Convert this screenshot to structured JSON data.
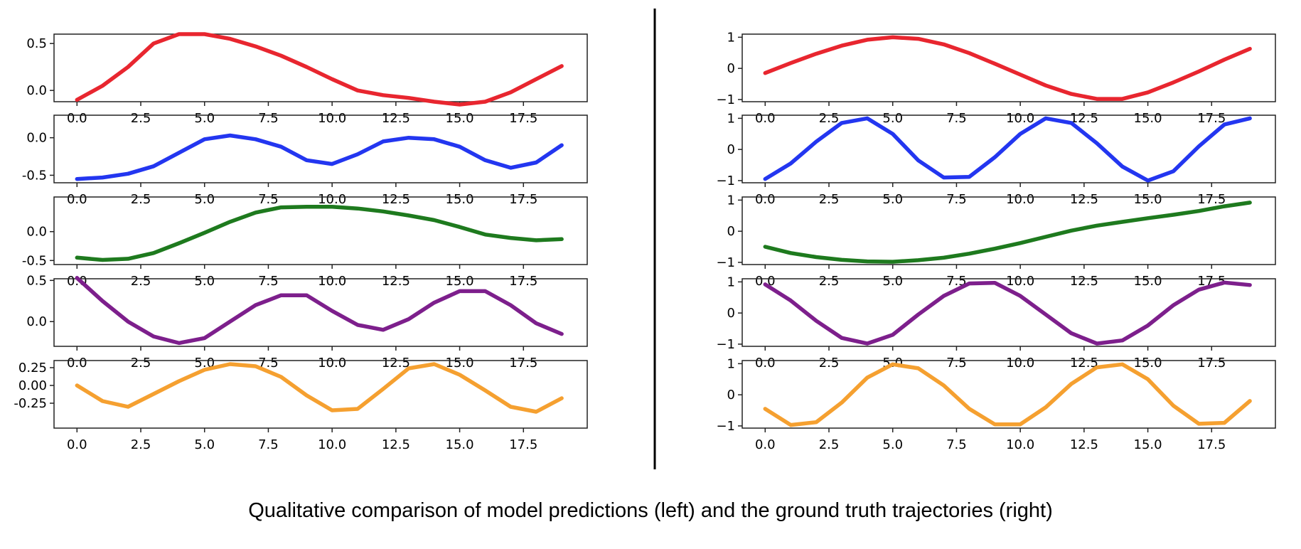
{
  "caption": "Qualitative comparison of model predictions (left) and the ground truth trajectories (right)",
  "chart_data": [
    {
      "type": "line",
      "name": "left",
      "x": [
        0,
        1,
        2,
        3,
        4,
        5,
        6,
        7,
        8,
        9,
        10,
        11,
        12,
        13,
        14,
        15,
        16,
        17,
        18,
        19
      ],
      "xticks": [
        "0.0",
        "2.5",
        "5.0",
        "7.5",
        "10.0",
        "12.5",
        "15.0",
        "17.5"
      ],
      "xlim": [
        -0.9,
        20
      ],
      "panels": [
        {
          "color": "#e8262f",
          "ylim": [
            -0.12,
            0.6
          ],
          "yticks": [
            "0.5",
            "0.0"
          ],
          "ytick_values": [
            0.5,
            0.0
          ],
          "values": [
            -0.1,
            0.05,
            0.25,
            0.5,
            0.6,
            0.6,
            0.55,
            0.47,
            0.37,
            0.25,
            0.12,
            0.0,
            -0.05,
            -0.08,
            -0.12,
            -0.15,
            -0.12,
            -0.02,
            0.12,
            0.26
          ]
        },
        {
          "color": "#2336f0",
          "ylim": [
            -0.6,
            0.3
          ],
          "yticks": [
            "0.0",
            "-0.5"
          ],
          "ytick_values": [
            0.0,
            -0.5
          ],
          "values": [
            -0.55,
            -0.53,
            -0.48,
            -0.38,
            -0.2,
            -0.02,
            0.03,
            -0.02,
            -0.12,
            -0.3,
            -0.35,
            -0.22,
            -0.05,
            0.0,
            -0.02,
            -0.12,
            -0.3,
            -0.4,
            -0.33,
            -0.1
          ]
        },
        {
          "color": "#1e7a1e",
          "ylim": [
            -0.57,
            0.6
          ],
          "yticks": [
            "0.0",
            "-0.5"
          ],
          "ytick_values": [
            0.0,
            -0.5
          ],
          "values": [
            -0.45,
            -0.49,
            -0.47,
            -0.37,
            -0.2,
            -0.02,
            0.17,
            0.33,
            0.42,
            0.43,
            0.43,
            0.4,
            0.35,
            0.28,
            0.2,
            0.08,
            -0.05,
            -0.11,
            -0.15,
            -0.13
          ]
        },
        {
          "color": "#7d1f8c",
          "ylim": [
            -0.3,
            0.52
          ],
          "yticks": [
            "0.5",
            "0.0"
          ],
          "ytick_values": [
            0.5,
            0.0
          ],
          "values": [
            0.53,
            0.25,
            0.0,
            -0.18,
            -0.26,
            -0.2,
            0.0,
            0.2,
            0.32,
            0.32,
            0.13,
            -0.04,
            -0.1,
            0.03,
            0.23,
            0.37,
            0.37,
            0.2,
            -0.02,
            -0.15
          ]
        },
        {
          "color": "#f5a030",
          "ylim": [
            -0.6,
            0.35
          ],
          "yticks": [
            "0.25",
            "0.00",
            "-0.25"
          ],
          "ytick_values": [
            0.25,
            0.0,
            -0.25
          ],
          "values": [
            0.0,
            -0.22,
            -0.3,
            -0.12,
            0.06,
            0.22,
            0.3,
            0.27,
            0.12,
            -0.14,
            -0.35,
            -0.33,
            -0.05,
            0.24,
            0.3,
            0.15,
            -0.07,
            -0.3,
            -0.37,
            -0.18
          ]
        }
      ]
    },
    {
      "type": "line",
      "name": "right",
      "x": [
        0,
        1,
        2,
        3,
        4,
        5,
        6,
        7,
        8,
        9,
        10,
        11,
        12,
        13,
        14,
        15,
        16,
        17,
        18,
        19
      ],
      "xticks": [
        "0.0",
        "2.5",
        "5.0",
        "7.5",
        "10.0",
        "12.5",
        "15.0",
        "17.5"
      ],
      "xlim": [
        -0.9,
        20
      ],
      "panels": [
        {
          "color": "#e8262f",
          "ylim": [
            -1.07,
            1.1
          ],
          "yticks": [
            "1",
            "0",
            "−1"
          ],
          "ytick_values": [
            1,
            0,
            -1
          ],
          "values": [
            -0.15,
            0.17,
            0.47,
            0.73,
            0.92,
            1.0,
            0.95,
            0.77,
            0.49,
            0.15,
            -0.2,
            -0.55,
            -0.82,
            -0.98,
            -0.98,
            -0.77,
            -0.45,
            -0.1,
            0.28,
            0.63
          ]
        },
        {
          "color": "#2336f0",
          "ylim": [
            -1.07,
            1.1
          ],
          "yticks": [
            "1",
            "0",
            "−1"
          ],
          "ytick_values": [
            1,
            0,
            -1
          ],
          "values": [
            -0.95,
            -0.45,
            0.25,
            0.85,
            1.0,
            0.5,
            -0.35,
            -0.9,
            -0.88,
            -0.25,
            0.5,
            1.0,
            0.85,
            0.2,
            -0.55,
            -1.0,
            -0.7,
            0.1,
            0.8,
            1.0
          ]
        },
        {
          "color": "#1e7a1e",
          "ylim": [
            -1.07,
            1.1
          ],
          "yticks": [
            "1",
            "0",
            "−1"
          ],
          "ytick_values": [
            1,
            0,
            -1
          ],
          "values": [
            -0.5,
            -0.7,
            -0.83,
            -0.92,
            -0.97,
            -0.98,
            -0.93,
            -0.85,
            -0.72,
            -0.56,
            -0.38,
            -0.18,
            0.02,
            0.18,
            0.3,
            0.42,
            0.53,
            0.65,
            0.8,
            0.92
          ]
        },
        {
          "color": "#7d1f8c",
          "ylim": [
            -1.07,
            1.1
          ],
          "yticks": [
            "1",
            "0",
            "−1"
          ],
          "ytick_values": [
            1,
            0,
            -1
          ],
          "values": [
            0.92,
            0.4,
            -0.25,
            -0.8,
            -0.98,
            -0.7,
            -0.05,
            0.55,
            0.95,
            0.97,
            0.55,
            -0.05,
            -0.65,
            -0.98,
            -0.88,
            -0.4,
            0.25,
            0.75,
            0.98,
            0.9
          ]
        },
        {
          "color": "#f5a030",
          "ylim": [
            -1.07,
            1.1
          ],
          "yticks": [
            "1",
            "0",
            "−1"
          ],
          "ytick_values": [
            1,
            0,
            -1
          ],
          "values": [
            -0.45,
            -0.97,
            -0.88,
            -0.25,
            0.55,
            0.98,
            0.85,
            0.3,
            -0.45,
            -0.95,
            -0.95,
            -0.4,
            0.35,
            0.88,
            0.98,
            0.5,
            -0.35,
            -0.93,
            -0.9,
            -0.2
          ]
        }
      ]
    }
  ]
}
